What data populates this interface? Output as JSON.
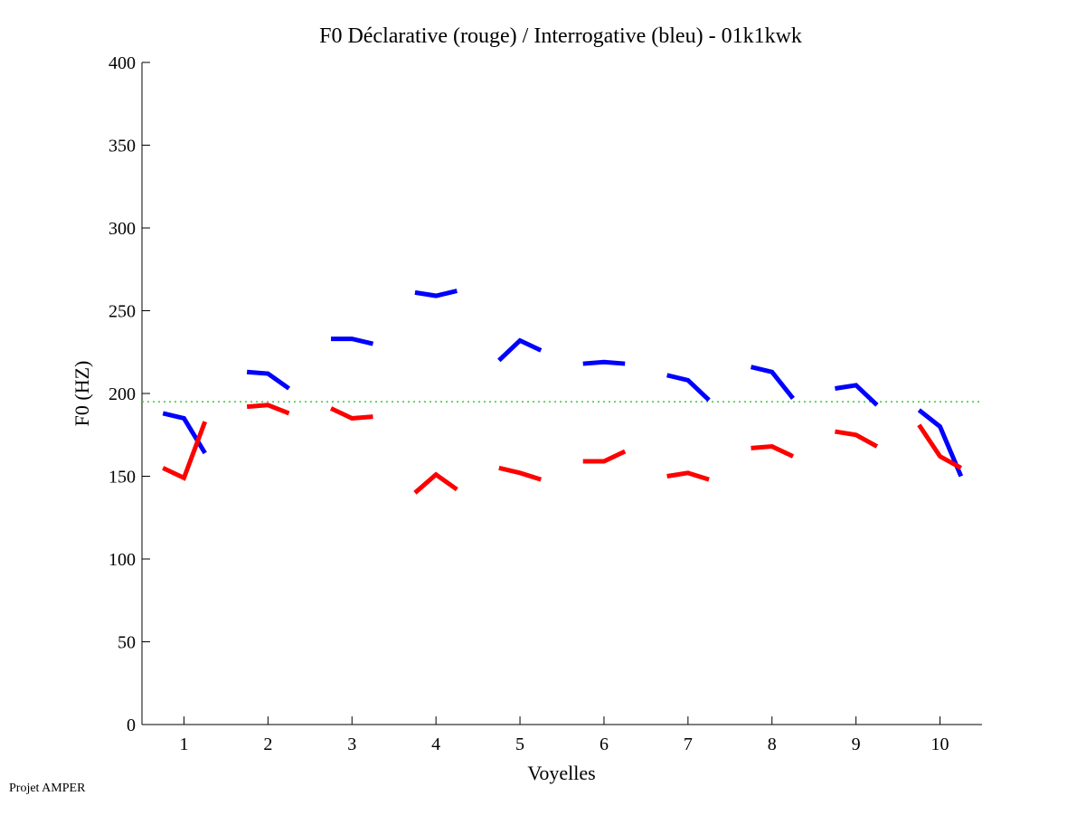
{
  "chart_data": {
    "type": "line",
    "title": "F0 Déclarative (rouge) / Interrogative (bleu) - 01k1kwk",
    "xlabel": "Voyelles",
    "ylabel": "F0 (HZ)",
    "xlim": [
      0.5,
      10.5
    ],
    "ylim": [
      0,
      400
    ],
    "xticks": [
      1,
      2,
      3,
      4,
      5,
      6,
      7,
      8,
      9,
      10
    ],
    "yticks": [
      0,
      50,
      100,
      150,
      200,
      250,
      300,
      350,
      400
    ],
    "grid": false,
    "point_offsets": [
      -0.25,
      0,
      0.25
    ],
    "reference_line": {
      "y": 195,
      "color": "#33cc33",
      "style": "dotted"
    },
    "series": [
      {
        "name": "Interrogative (bleu)",
        "color": "#0000ff",
        "segments": [
          [
            188,
            185,
            164
          ],
          [
            213,
            212,
            203
          ],
          [
            233,
            233,
            230
          ],
          [
            261,
            259,
            262
          ],
          [
            220,
            232,
            226
          ],
          [
            218,
            219,
            218
          ],
          [
            211,
            208,
            196
          ],
          [
            216,
            213,
            197
          ],
          [
            203,
            205,
            193
          ],
          [
            190,
            180,
            150
          ]
        ]
      },
      {
        "name": "Déclarative (rouge)",
        "color": "#ff0000",
        "segments": [
          [
            155,
            149,
            183
          ],
          [
            192,
            193,
            188
          ],
          [
            191,
            185,
            186
          ],
          [
            140,
            151,
            142
          ],
          [
            155,
            152,
            148
          ],
          [
            159,
            159,
            165
          ],
          [
            150,
            152,
            148
          ],
          [
            167,
            168,
            162
          ],
          [
            177,
            175,
            168
          ],
          [
            181,
            162,
            155
          ]
        ]
      }
    ]
  },
  "footer": "Projet AMPER"
}
